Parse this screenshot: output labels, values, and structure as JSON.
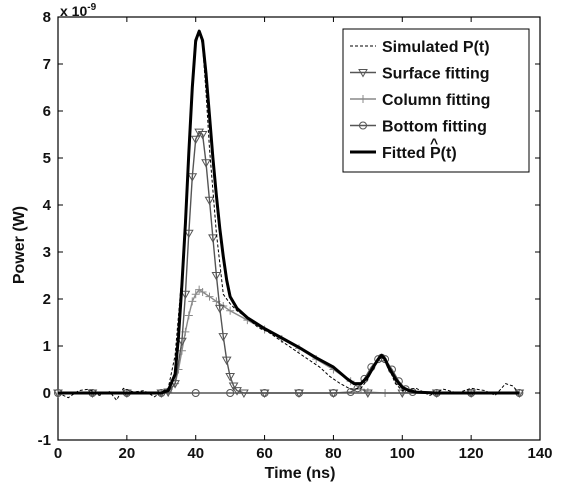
{
  "chart_data": {
    "type": "line",
    "xlabel": "Time (ns)",
    "ylabel": "Power (W)",
    "y_exponent_label": "x 10",
    "y_exponent_power": "-9",
    "xlim": [
      0,
      140
    ],
    "ylim": [
      -1,
      8
    ],
    "xticks": [
      0,
      20,
      40,
      60,
      80,
      100,
      120,
      140
    ],
    "yticks": [
      -1,
      0,
      1,
      2,
      3,
      4,
      5,
      6,
      7,
      8
    ],
    "xtick_labels": [
      "0",
      "20",
      "40",
      "60",
      "80",
      "100",
      "120",
      "140"
    ],
    "ytick_labels": [
      "-1",
      "0",
      "1",
      "2",
      "3",
      "4",
      "5",
      "6",
      "7",
      "8"
    ],
    "grid": false,
    "legend_position": "top-right",
    "legend": [
      {
        "label": "Simulated P(t)",
        "style": "dashed",
        "color": "#000000"
      },
      {
        "label": "Surface fitting",
        "style": "triangle-down",
        "color": "#555555"
      },
      {
        "label": "Column fitting",
        "style": "plus",
        "color": "#888888"
      },
      {
        "label": "Bottom fitting",
        "style": "circle",
        "color": "#555555"
      },
      {
        "label": "Fitted P(t)",
        "style": "thick",
        "color": "#000000",
        "hat": "^"
      }
    ],
    "series": [
      {
        "name": "Simulated P(t)",
        "x": [
          0,
          3,
          6,
          9,
          12,
          15,
          17,
          19,
          22,
          25,
          28,
          30,
          32,
          34,
          36,
          38,
          40,
          41,
          42,
          43,
          44,
          46,
          48,
          50,
          52,
          55,
          58,
          61,
          64,
          67,
          70,
          73,
          76,
          79,
          82,
          85,
          88,
          90,
          92,
          94,
          96,
          98,
          100,
          104,
          108,
          112,
          116,
          120,
          124,
          127,
          130,
          132,
          134
        ],
        "y": [
          0.0,
          -0.1,
          0.05,
          0.08,
          -0.05,
          0.03,
          -0.15,
          0.1,
          0.02,
          0.05,
          -0.08,
          0.02,
          0.1,
          0.8,
          2.5,
          5.2,
          7.4,
          7.7,
          7.4,
          6.4,
          5.2,
          3.4,
          2.1,
          1.9,
          1.75,
          1.6,
          1.4,
          1.3,
          1.15,
          1.0,
          0.85,
          0.7,
          0.55,
          0.35,
          0.2,
          0.08,
          0.1,
          0.3,
          0.6,
          0.8,
          0.55,
          0.2,
          0.05,
          0.1,
          -0.05,
          0.08,
          0.0,
          0.1,
          0.05,
          -0.05,
          0.2,
          0.15,
          0.0
        ]
      },
      {
        "name": "Surface fitting",
        "x": [
          0,
          10,
          20,
          30,
          32,
          34,
          36,
          37,
          38,
          39,
          40,
          41,
          42,
          43,
          44,
          45,
          46,
          47,
          48,
          49,
          50,
          51,
          52,
          54,
          60,
          70,
          80,
          90,
          100,
          110,
          120,
          134
        ],
        "y": [
          0,
          0,
          0,
          0,
          0.02,
          0.2,
          1.1,
          2.1,
          3.4,
          4.6,
          5.4,
          5.55,
          5.5,
          4.9,
          4.1,
          3.3,
          2.5,
          1.8,
          1.2,
          0.7,
          0.35,
          0.15,
          0.05,
          0.0,
          0,
          0,
          0,
          0,
          0,
          0,
          0,
          0
        ]
      },
      {
        "name": "Column fitting",
        "x": [
          0,
          10,
          20,
          30,
          32,
          34,
          35,
          36,
          37,
          38,
          39,
          40,
          41,
          42,
          44,
          46,
          48,
          50,
          55,
          60,
          65,
          70,
          75,
          80,
          85,
          88,
          90,
          95,
          100,
          110,
          120,
          134
        ],
        "y": [
          0,
          0,
          0,
          0,
          0.02,
          0.2,
          0.5,
          0.9,
          1.3,
          1.65,
          1.95,
          2.1,
          2.2,
          2.15,
          2.05,
          1.95,
          1.85,
          1.75,
          1.55,
          1.35,
          1.15,
          0.95,
          0.72,
          0.5,
          0.25,
          0.08,
          0.02,
          0,
          0,
          0,
          0,
          0
        ]
      },
      {
        "name": "Bottom fitting",
        "x": [
          0,
          10,
          20,
          30,
          40,
          50,
          60,
          70,
          80,
          85,
          87,
          89,
          91,
          93,
          94,
          95,
          97,
          99,
          101,
          103,
          110,
          120,
          134
        ],
        "y": [
          0,
          0,
          0,
          0,
          0,
          0,
          0,
          0,
          0,
          0.02,
          0.1,
          0.3,
          0.55,
          0.72,
          0.75,
          0.72,
          0.5,
          0.25,
          0.08,
          0.02,
          0,
          0,
          0
        ]
      },
      {
        "name": "Fitted P(t)",
        "x": [
          0,
          10,
          20,
          30,
          32,
          34,
          35,
          36,
          37,
          38,
          39,
          40,
          41,
          42,
          43,
          44,
          45,
          46,
          47,
          48,
          49,
          50,
          52,
          55,
          60,
          65,
          70,
          75,
          80,
          84,
          86,
          88,
          90,
          92,
          93,
          94,
          95,
          96,
          98,
          100,
          102,
          104,
          110,
          120,
          134
        ],
        "y": [
          0,
          0,
          0,
          0,
          0.05,
          0.4,
          1.2,
          2.3,
          3.6,
          5.1,
          6.5,
          7.5,
          7.7,
          7.5,
          6.8,
          5.9,
          5.0,
          4.2,
          3.5,
          2.9,
          2.4,
          2.05,
          1.8,
          1.6,
          1.37,
          1.17,
          0.97,
          0.75,
          0.55,
          0.3,
          0.2,
          0.2,
          0.35,
          0.6,
          0.72,
          0.8,
          0.72,
          0.55,
          0.3,
          0.12,
          0.05,
          0.02,
          0,
          0,
          0
        ]
      }
    ]
  }
}
